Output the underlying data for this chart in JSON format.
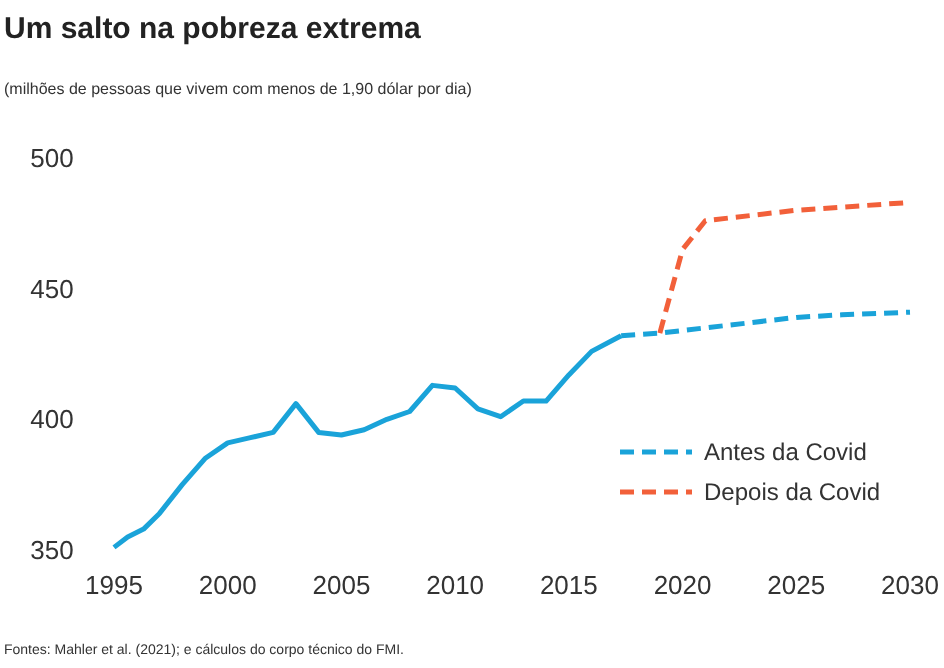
{
  "chart_data": {
    "type": "line",
    "title": "Um salto na pobreza extrema",
    "subtitle": "(milhões de pessoas que vivem com menos de 1,90 dólar por dia)",
    "annotations": [
      "Fontes: Mahler et al. (2021); e cálculos do corpo técnico do FMI."
    ],
    "xlim": [
      1995,
      2030
    ],
    "xticks": [
      1995,
      2000,
      2005,
      2010,
      2015,
      2020,
      2025,
      2030
    ],
    "ylim": [
      350,
      500
    ],
    "yticks": [
      350,
      400,
      450,
      500
    ],
    "grid": false,
    "legend": "bottom right",
    "marker": "none",
    "series": [
      {
        "color": "#1aa3d9",
        "line_style": "solid",
        "x": [
          1995,
          1995.6,
          1996.3,
          1997,
          1998,
          1999,
          2000,
          2001,
          2002,
          2003,
          2004,
          2005,
          2006,
          2007,
          2008,
          2009,
          2010,
          2011,
          2012,
          2013,
          2014,
          2015,
          2016,
          2017.3
        ],
        "values": [
          351,
          355,
          358,
          364,
          375,
          385,
          391,
          393,
          395,
          406,
          395,
          394,
          396,
          400,
          403,
          413,
          412,
          404,
          401,
          407,
          407,
          417,
          426,
          432
        ]
      },
      {
        "name": "Antes da Covid",
        "color": "#1aa3d9",
        "line_style": "dashed",
        "x": [
          2017.3,
          2019,
          2022,
          2025,
          2027,
          2030
        ],
        "values": [
          432,
          433,
          436,
          439,
          440,
          441
        ]
      },
      {
        "name": "Depois da Covid",
        "color": "#f2603a",
        "line_style": "dashed",
        "x": [
          2019,
          2020,
          2021,
          2025,
          2030
        ],
        "values": [
          433,
          465,
          476,
          480,
          483
        ]
      }
    ]
  }
}
